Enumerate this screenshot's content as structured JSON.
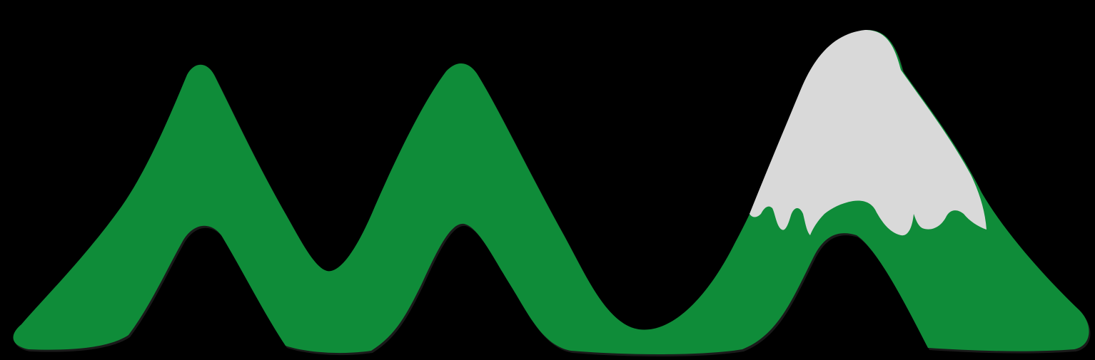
{
  "scene": {
    "subject": "mountain-range-illustration",
    "mountain_count": 3,
    "snow_capped_peaks": 1
  },
  "colors": {
    "background": "#000000",
    "mountain_green": "#0f8c39",
    "snow": "#d9d9d9",
    "outline": "#1a1a1a"
  }
}
